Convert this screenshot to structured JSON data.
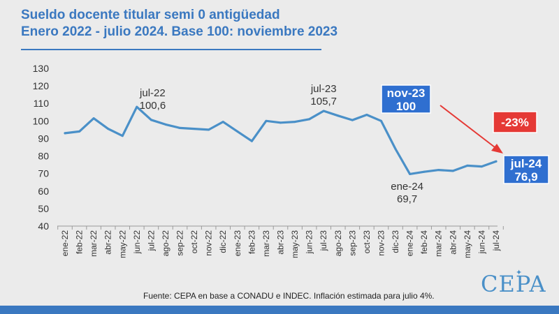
{
  "title_line1": "Sueldo docente titular semi 0 antigüedad",
  "title_line2": "Enero 2022 - julio 2024. Base 100: noviembre 2023",
  "source": "Fuente: CEPA en base a CONADU e INDEC. Inflación estimada para julio 4%.",
  "logo_text": "CEPA",
  "colors": {
    "line": "#4a90c8",
    "accent": "#3a78c0",
    "badge": "#2f6fd0",
    "negative": "#e53935"
  },
  "chart_data": {
    "type": "line",
    "categories": [
      "ene-22",
      "feb-22",
      "mar-22",
      "abr-22",
      "may-22",
      "jun-22",
      "jul-22",
      "ago-22",
      "sep-22",
      "oct-22",
      "nov-22",
      "dic-22",
      "ene-23",
      "feb-23",
      "mar-23",
      "abr-23",
      "may-23",
      "jun-23",
      "jul-23",
      "ago-23",
      "sep-23",
      "oct-23",
      "nov-23",
      "dic-23",
      "ene-24",
      "feb-24",
      "mar-24",
      "abr-24",
      "may-24",
      "jun-24",
      "jul-24"
    ],
    "values": [
      93,
      94,
      101.5,
      95.5,
      91.5,
      108,
      100.6,
      98,
      96,
      95.5,
      95,
      99.5,
      94,
      88.5,
      100,
      99,
      99.5,
      101,
      105.7,
      103,
      100.5,
      103.5,
      100,
      84,
      69.7,
      71,
      72,
      71.5,
      74.5,
      74,
      76.9
    ],
    "ylim": [
      40,
      130
    ],
    "yticks": [
      "40",
      "50",
      "60",
      "70",
      "80",
      "90",
      "100",
      "110",
      "120",
      "130"
    ],
    "annotations": {
      "jul22": {
        "label": "jul-22",
        "value": "100,6"
      },
      "jul23": {
        "label": "jul-23",
        "value": "105,7"
      },
      "ene24": {
        "label": "ene-24",
        "value": "69,7"
      },
      "nov23": {
        "label": "nov-23",
        "value": "100"
      },
      "jul24": {
        "label": "jul-24",
        "value": "76,9"
      },
      "change": "-23%"
    }
  }
}
